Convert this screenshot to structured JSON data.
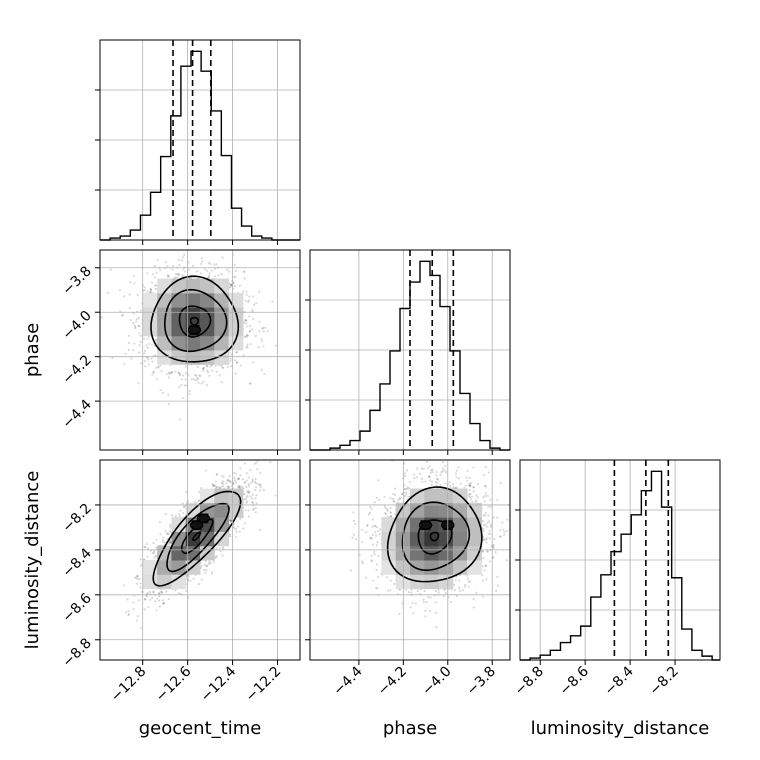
{
  "chart_data": {
    "type": "corner",
    "parameters": [
      "geocent_time",
      "phase",
      "luminosity_distance"
    ],
    "grid": true,
    "ranges": {
      "geocent_time": [
        -12.99,
        -12.1
      ],
      "phase": [
        -4.62,
        -3.72
      ],
      "luminosity_distance": [
        -8.89,
        -8.0
      ]
    },
    "ticks": {
      "geocent_time": [
        -12.8,
        -12.6,
        -12.4,
        -12.2
      ],
      "phase": [
        -4.4,
        -4.2,
        -4.0,
        -3.8
      ],
      "luminosity_distance": [
        -8.8,
        -8.6,
        -8.4,
        -8.2
      ]
    },
    "tick_labels": {
      "geocent_time": [
        "−12.8",
        "−12.6",
        "−12.4",
        "−12.2"
      ],
      "phase": [
        "−4.4",
        "−4.2",
        "−4.0",
        "−3.8"
      ],
      "luminosity_distance": [
        "−8.8",
        "−8.6",
        "−8.4",
        "−8.2"
      ]
    },
    "axis_labels": {
      "geocent_time": "geocent_time",
      "phase": "phase",
      "luminosity_distance": "luminosity_distance"
    },
    "marginals": {
      "geocent_time": {
        "bin_edges": [
          -12.99,
          -12.945,
          -12.9,
          -12.855,
          -12.81,
          -12.765,
          -12.72,
          -12.675,
          -12.63,
          -12.585,
          -12.54,
          -12.495,
          -12.45,
          -12.405,
          -12.36,
          -12.315,
          -12.27,
          -12.225,
          -12.18,
          -12.135,
          -12.1
        ],
        "heights": [
          0,
          2,
          4,
          10,
          25,
          48,
          84,
          125,
          175,
          190,
          170,
          130,
          85,
          32,
          14,
          4,
          2,
          0,
          0,
          0
        ],
        "quantiles": [
          -12.665,
          -12.578,
          -12.497
        ]
      },
      "phase": {
        "bin_edges": [
          -4.62,
          -4.575,
          -4.53,
          -4.485,
          -4.44,
          -4.395,
          -4.35,
          -4.305,
          -4.26,
          -4.215,
          -4.17,
          -4.125,
          -4.08,
          -4.035,
          -3.99,
          -3.945,
          -3.9,
          -3.855,
          -3.81,
          -3.765,
          -3.72
        ],
        "heights": [
          0,
          0,
          2,
          5,
          10,
          20,
          42,
          70,
          105,
          150,
          178,
          200,
          185,
          152,
          105,
          60,
          28,
          10,
          2,
          0
        ],
        "quantiles": [
          -4.17,
          -4.07,
          -3.975
        ]
      },
      "luminosity_distance": {
        "bin_edges": [
          -8.89,
          -8.845,
          -8.8,
          -8.755,
          -8.71,
          -8.665,
          -8.62,
          -8.575,
          -8.53,
          -8.485,
          -8.44,
          -8.395,
          -8.35,
          -8.305,
          -8.26,
          -8.215,
          -8.17,
          -8.125,
          -8.08,
          -8.035,
          -8.0
        ],
        "heights": [
          0,
          2,
          5,
          10,
          18,
          25,
          35,
          65,
          88,
          112,
          130,
          150,
          175,
          195,
          158,
          85,
          32,
          10,
          4,
          0
        ],
        "quantiles": [
          -8.47,
          -8.33,
          -8.23
        ]
      }
    },
    "pairs": [
      {
        "x": "geocent_time",
        "y": "phase",
        "mean": [
          -12.57,
          -4.04
        ],
        "sd": [
          0.11,
          0.11
        ],
        "corr": 0.0,
        "contour_levels": [
          0.12,
          0.5,
          1.0,
          1.4
        ],
        "peaks": [
          [
            -12.57,
            -4.08
          ]
        ]
      },
      {
        "x": "geocent_time",
        "y": "luminosity_distance",
        "mean": [
          -12.56,
          -8.34
        ],
        "sd": [
          0.11,
          0.12
        ],
        "corr": 0.8,
        "contour_levels": [
          0.12,
          0.5,
          1.0,
          1.4
        ],
        "peaks": [
          [
            -12.56,
            -8.29
          ],
          [
            -12.53,
            -8.26
          ]
        ]
      },
      {
        "x": "phase",
        "y": "luminosity_distance",
        "mean": [
          -4.06,
          -8.34
        ],
        "sd": [
          0.12,
          0.12
        ],
        "corr": 0.1,
        "contour_levels": [
          0.12,
          0.5,
          1.0,
          1.4
        ],
        "peaks": [
          [
            -4.1,
            -8.29
          ],
          [
            -4.0,
            -8.29
          ]
        ]
      }
    ]
  }
}
